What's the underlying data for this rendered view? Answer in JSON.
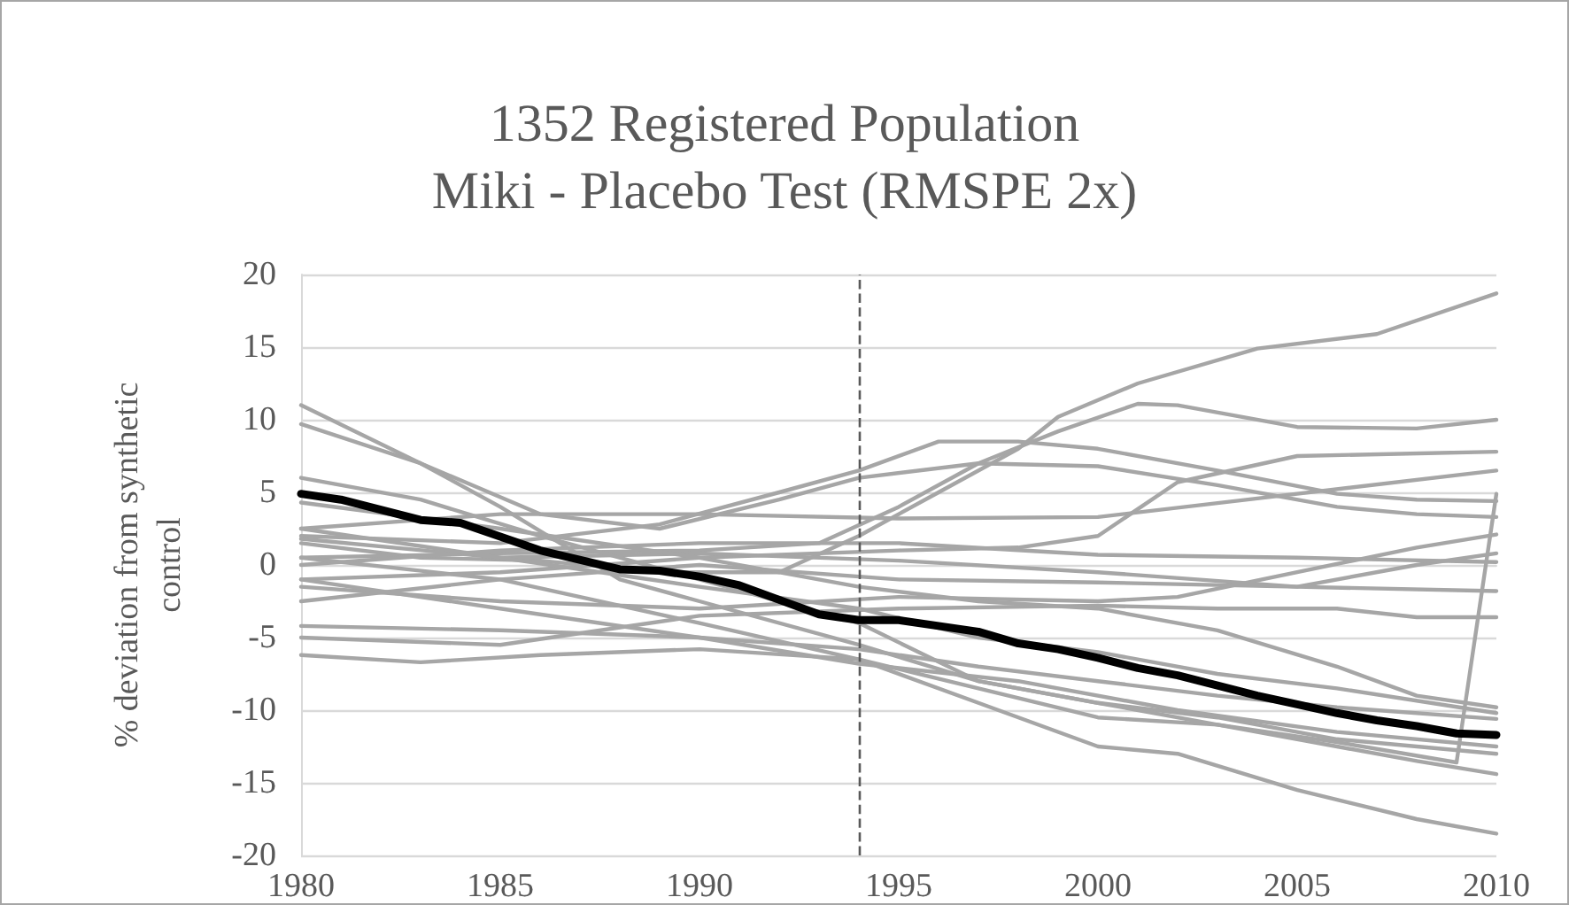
{
  "chart_data": {
    "type": "line",
    "title": "1352 Registered Population\nMiki - Placebo Test (RMSPE 2x)",
    "ylabel": "% deviation from synthetic control",
    "xlim": [
      1980,
      2010
    ],
    "xticks": [
      1980,
      1985,
      1990,
      1995,
      2000,
      2005,
      2010
    ],
    "ylim": [
      -20,
      20
    ],
    "yticks": [
      -20,
      -15,
      -10,
      -5,
      0,
      5,
      10,
      15,
      20
    ],
    "grid": "y",
    "marker": "none",
    "line_style": "solid",
    "ref_lines": [
      {
        "axis": "x",
        "value": 1994,
        "label": null,
        "color": "#595959",
        "line_style": "dashed"
      }
    ],
    "series": [
      {
        "color": "#a6a6a6",
        "x": [
          1980,
          1983,
          1986,
          1989,
          1992,
          1994,
          1996,
          1998,
          1999,
          2001,
          2004,
          2007,
          2010
        ],
        "values": [
          1.5,
          0.5,
          0.3,
          -0.5,
          -0.5,
          2,
          5,
          8,
          10.2,
          12.5,
          14.9,
          15.9,
          18.7
        ]
      },
      {
        "color": "#a6a6a6",
        "x": [
          1980,
          1985,
          1990,
          1993,
          1995,
          1997,
          1999,
          2001,
          2002,
          2005,
          2008,
          2010
        ],
        "values": [
          0.5,
          0.8,
          1,
          1.5,
          4,
          7,
          9.2,
          11.1,
          11,
          9.5,
          9.4,
          10.0
        ]
      },
      {
        "color": "#a6a6a6",
        "x": [
          1980,
          1985,
          1989,
          1992,
          1994,
          1996,
          1998,
          2000,
          2003,
          2006,
          2008,
          2010
        ],
        "values": [
          2,
          1.5,
          2.8,
          5,
          6.5,
          8.5,
          8.5,
          8,
          6.5,
          4.9,
          4.5,
          4.4
        ]
      },
      {
        "color": "#a6a6a6",
        "x": [
          1980,
          1983,
          1986,
          1989,
          1992,
          1994,
          1997,
          2000,
          2003,
          2006,
          2008,
          2010
        ],
        "values": [
          9.7,
          7,
          3.5,
          2.5,
          4.5,
          6,
          7,
          6.8,
          5.5,
          4,
          3.5,
          3.3
        ]
      },
      {
        "color": "#a6a6a6",
        "x": [
          1980,
          1985,
          1990,
          1995,
          1998,
          2000,
          2002,
          2005,
          2010
        ],
        "values": [
          -1,
          -0.5,
          0.5,
          1,
          1.2,
          2,
          5.7,
          7.5,
          7.8
        ]
      },
      {
        "color": "#a6a6a6",
        "x": [
          1980,
          1985,
          1990,
          1995,
          2000,
          2005,
          2010
        ],
        "values": [
          2.5,
          3.5,
          3.5,
          3.2,
          3.3,
          4.9,
          6.5
        ]
      },
      {
        "color": "#a6a6a6",
        "x": [
          1980,
          1985,
          1990,
          1995,
          2000,
          2002,
          2005,
          2008,
          2010
        ],
        "values": [
          -1.5,
          -2.5,
          -3,
          -2.2,
          -2.5,
          -2.2,
          -0.5,
          1.2,
          2.1
        ]
      },
      {
        "color": "#a6a6a6",
        "x": [
          1980,
          1985,
          1990,
          1995,
          2000,
          2005,
          2008,
          2010
        ],
        "values": [
          1.8,
          0.5,
          0.8,
          0.3,
          -0.5,
          -1.5,
          0,
          0.8
        ]
      },
      {
        "color": "#a6a6a6",
        "x": [
          1980,
          1985,
          1990,
          1995,
          2000,
          2005,
          2010
        ],
        "values": [
          0,
          1,
          1.5,
          1.5,
          0.7,
          0.5,
          0.2
        ]
      },
      {
        "color": "#a6a6a6",
        "x": [
          1980,
          1985,
          1990,
          1995,
          2000,
          2005,
          2010
        ],
        "values": [
          -2.5,
          -1,
          0,
          -1,
          -1.2,
          -1.5,
          -1.8
        ]
      },
      {
        "color": "#a6a6a6",
        "x": [
          1980,
          1985,
          1990,
          1995,
          2000,
          2003,
          2006,
          2008,
          2010
        ],
        "values": [
          -5,
          -5.5,
          -3.5,
          -3,
          -2.8,
          -3,
          -3,
          -3.6,
          -3.6
        ]
      },
      {
        "color": "#a6a6a6",
        "x": [
          1980,
          1983,
          1986,
          1990,
          1994,
          1997,
          2000,
          2003,
          2006,
          2009,
          2010
        ],
        "values": [
          -6.2,
          -6.7,
          -6.2,
          -5.8,
          -6.5,
          -8.5,
          -10.5,
          -11,
          -12.2,
          -13.6,
          4.9
        ]
      },
      {
        "color": "#a6a6a6",
        "x": [
          1980,
          1985,
          1990,
          1994,
          1997,
          2000,
          2003,
          2006,
          2008,
          2010
        ],
        "values": [
          4.3,
          2.5,
          0.5,
          -1.5,
          -2.5,
          -3,
          -4.5,
          -7,
          -9,
          -9.8
        ]
      },
      {
        "color": "#a6a6a6",
        "x": [
          1980,
          1985,
          1990,
          1994,
          1997,
          2000,
          2003,
          2006,
          2010
        ],
        "values": [
          2.5,
          0.5,
          -1.5,
          -3,
          -5,
          -6,
          -7.5,
          -8.5,
          -10.2
        ]
      },
      {
        "color": "#a6a6a6",
        "x": [
          1980,
          1985,
          1990,
          1994,
          1997,
          2000,
          2003,
          2006,
          2010
        ],
        "values": [
          -4.2,
          -4.5,
          -5,
          -5.8,
          -7,
          -8,
          -9,
          -9.8,
          -10.6
        ]
      },
      {
        "color": "#a6a6a6",
        "x": [
          1980,
          1983,
          1985,
          1988,
          1990,
          1994,
          1997,
          2000,
          2003,
          2006,
          2010
        ],
        "values": [
          11,
          7,
          4,
          -1,
          -2.5,
          -5.5,
          -8,
          -9.5,
          -10.5,
          -12,
          -13
        ]
      },
      {
        "color": "#a6a6a6",
        "x": [
          1980,
          1983,
          1986,
          1990,
          1994,
          1997,
          2000,
          2003,
          2006,
          2008,
          2010
        ],
        "values": [
          6,
          4.5,
          2,
          -1,
          -4,
          -8,
          -9.5,
          -11,
          -12.5,
          -13.5,
          -14.4
        ]
      },
      {
        "color": "#a6a6a6",
        "x": [
          1980,
          1985,
          1990,
          1994,
          1997,
          2000,
          2002,
          2005,
          2008,
          2010
        ],
        "values": [
          0.5,
          -1,
          -4,
          -6.5,
          -9.5,
          -12.5,
          -13,
          -15.5,
          -17.5,
          -18.5
        ]
      },
      {
        "color": "#a6a6a6",
        "x": [
          1980,
          1985,
          1990,
          1994,
          1998,
          2002,
          2006,
          2010
        ],
        "values": [
          -1,
          -3,
          -5,
          -6.8,
          -8,
          -10,
          -11.5,
          -12.5
        ]
      },
      {
        "color": "#000000",
        "x": [
          1980,
          1981,
          1983,
          1984,
          1986,
          1988,
          1989,
          1990,
          1991,
          1992,
          1993,
          1994,
          1995,
          1996,
          1997,
          1998,
          1999,
          2000,
          2001,
          2002,
          2003,
          2004,
          2005,
          2006,
          2007,
          2008,
          2009,
          2010
        ],
        "values": [
          4.9,
          4.5,
          3.1,
          2.9,
          1.0,
          -0.3,
          -0.4,
          -0.8,
          -1.4,
          -2.4,
          -3.4,
          -3.8,
          -3.8,
          -4.2,
          -4.6,
          -5.4,
          -5.8,
          -6.4,
          -7.1,
          -7.6,
          -8.3,
          -9.0,
          -9.6,
          -10.2,
          -10.7,
          -11.1,
          -11.6,
          -11.7
        ]
      }
    ]
  }
}
